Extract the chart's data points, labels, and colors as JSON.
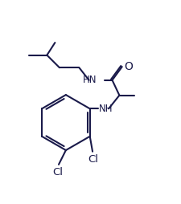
{
  "bg_color": "#ffffff",
  "line_color": "#1a1a4a",
  "line_width": 1.5,
  "font_size": 8.5,
  "figsize": [
    2.26,
    2.54
  ],
  "dpi": 100,
  "xlim": [
    0,
    10
  ],
  "ylim": [
    0,
    11.3
  ]
}
